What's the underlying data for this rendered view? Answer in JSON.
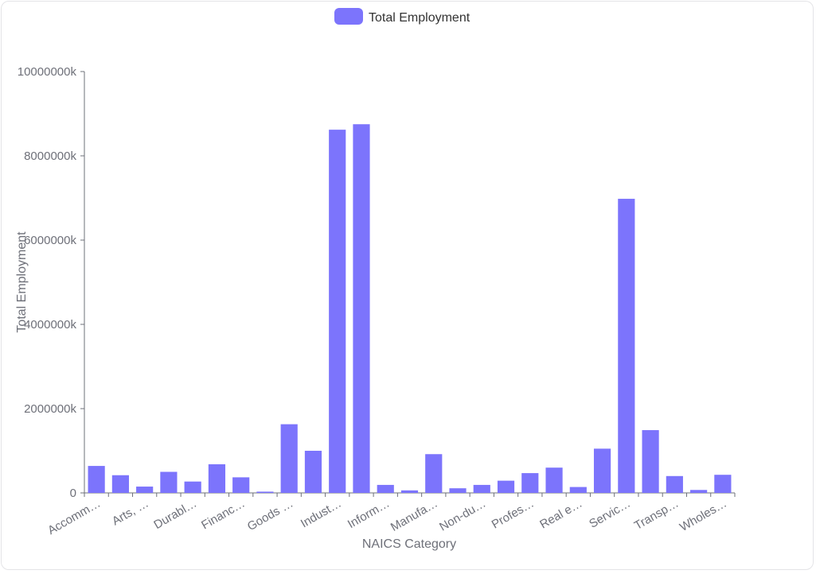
{
  "chart_data": {
    "type": "bar",
    "xlabel": "NAICS Category",
    "ylabel": "Total Employment",
    "ylim": [
      0,
      10000000
    ],
    "y_ticks": [
      "0",
      "2000000k",
      "4000000k",
      "6000000k",
      "8000000k",
      "10000000k"
    ],
    "grid": false,
    "legend_position": "top-center",
    "categories": [
      "Accomm…",
      "",
      "Arts, …",
      "",
      "Durabl…",
      "",
      "Financ…",
      "",
      "Goods …",
      "",
      "Indust…",
      "",
      "Inform…",
      "",
      "Manufa…",
      "",
      "Non-du…",
      "",
      "Profes…",
      "",
      "Real e…",
      "",
      "Servic…",
      "",
      "Transp…",
      "",
      "Wholes…"
    ],
    "series": [
      {
        "name": "Total Employment",
        "color": "#7c74fc",
        "values": [
          640000,
          420000,
          150000,
          500000,
          270000,
          680000,
          370000,
          30000,
          1630000,
          1000000,
          8620000,
          8750000,
          190000,
          60000,
          920000,
          110000,
          190000,
          290000,
          470000,
          600000,
          140000,
          1050000,
          6980000,
          1490000,
          400000,
          70000,
          430000
        ]
      }
    ]
  }
}
